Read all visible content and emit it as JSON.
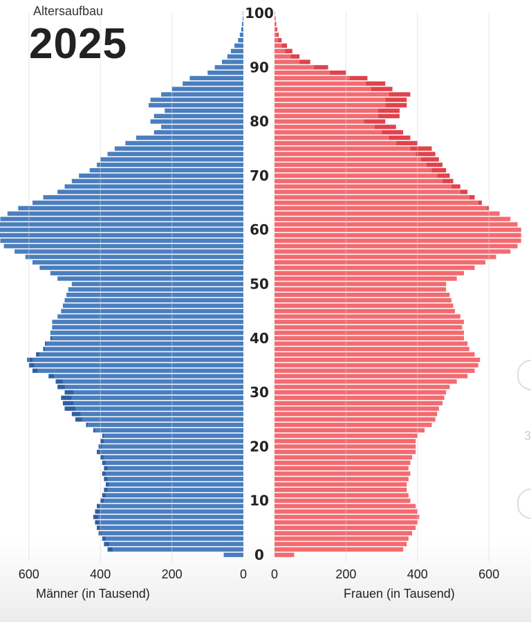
{
  "header": {
    "subtitle": "Altersaufbau",
    "year": "2025"
  },
  "colors": {
    "men": "#4a7ebf",
    "men_dark": "#2f5fa3",
    "women": "#f26b71",
    "women_dark": "#e0434b",
    "gridline": "#d6d6d6",
    "background": "#ffffff"
  },
  "edge_text": "3",
  "chart_data": {
    "type": "bar",
    "subtitle": "Altersaufbau",
    "title": "2025",
    "orientation": "horizontal-population-pyramid",
    "ages": [
      0,
      1,
      2,
      3,
      4,
      5,
      6,
      7,
      8,
      9,
      10,
      11,
      12,
      13,
      14,
      15,
      16,
      17,
      18,
      19,
      20,
      21,
      22,
      23,
      24,
      25,
      26,
      27,
      28,
      29,
      30,
      31,
      32,
      33,
      34,
      35,
      36,
      37,
      38,
      39,
      40,
      41,
      42,
      43,
      44,
      45,
      46,
      47,
      48,
      49,
      50,
      51,
      52,
      53,
      54,
      55,
      56,
      57,
      58,
      59,
      60,
      61,
      62,
      63,
      64,
      65,
      66,
      67,
      68,
      69,
      70,
      71,
      72,
      73,
      74,
      75,
      76,
      77,
      78,
      79,
      80,
      81,
      82,
      83,
      84,
      85,
      86,
      87,
      88,
      89,
      90,
      91,
      92,
      93,
      94,
      95,
      96,
      97,
      98,
      99,
      100
    ],
    "age_ticks": [
      "0",
      "10",
      "20",
      "30",
      "40",
      "50",
      "60",
      "70",
      "80",
      "90",
      "100"
    ],
    "x_ticks": [
      "600",
      "400",
      "200",
      "0"
    ],
    "x_ticks_right": [
      "0",
      "200",
      "400",
      "600"
    ],
    "xlim": [
      0,
      680
    ],
    "left": {
      "label": "Männer (in Tausend)",
      "total": [
        55,
        380,
        390,
        395,
        405,
        410,
        415,
        420,
        415,
        410,
        400,
        395,
        390,
        385,
        390,
        395,
        390,
        395,
        400,
        410,
        405,
        400,
        395,
        420,
        440,
        470,
        480,
        500,
        505,
        510,
        500,
        520,
        525,
        545,
        590,
        600,
        605,
        580,
        560,
        555,
        540,
        540,
        535,
        535,
        520,
        510,
        505,
        500,
        495,
        490,
        480,
        520,
        540,
        570,
        590,
        610,
        640,
        670,
        680,
        685,
        690,
        690,
        680,
        660,
        630,
        590,
        560,
        520,
        500,
        480,
        460,
        430,
        410,
        400,
        380,
        360,
        330,
        300,
        250,
        230,
        260,
        250,
        220,
        265,
        260,
        230,
        200,
        170,
        150,
        100,
        80,
        60,
        45,
        35,
        25,
        15,
        10,
        6,
        4,
        2,
        1
      ],
      "extra": [
        0,
        15,
        15,
        10,
        10,
        12,
        12,
        15,
        15,
        12,
        10,
        10,
        10,
        10,
        10,
        10,
        10,
        10,
        10,
        10,
        10,
        10,
        5,
        5,
        5,
        20,
        25,
        30,
        30,
        30,
        25,
        20,
        20,
        15,
        15,
        15,
        15,
        10,
        5,
        5,
        5,
        0,
        0,
        0,
        0,
        0,
        0,
        0,
        0,
        0,
        0,
        0,
        0,
        0,
        0,
        0,
        0,
        0,
        0,
        0,
        0,
        0,
        0,
        0,
        0,
        0,
        0,
        0,
        0,
        0,
        0,
        0,
        0,
        0,
        0,
        0,
        0,
        0,
        0,
        0,
        0,
        0,
        0,
        0,
        0,
        0,
        0,
        0,
        0,
        0,
        0,
        0,
        0,
        0,
        0,
        0,
        0,
        0,
        0,
        0,
        0
      ]
    },
    "right": {
      "label": "Frauen (in Tausend)",
      "total": [
        55,
        360,
        370,
        375,
        385,
        395,
        400,
        405,
        400,
        395,
        380,
        375,
        370,
        370,
        375,
        380,
        375,
        380,
        385,
        395,
        395,
        395,
        400,
        420,
        440,
        450,
        455,
        460,
        470,
        475,
        480,
        490,
        510,
        540,
        560,
        570,
        575,
        560,
        545,
        540,
        530,
        530,
        525,
        530,
        520,
        505,
        500,
        495,
        490,
        480,
        480,
        510,
        530,
        560,
        590,
        620,
        660,
        680,
        690,
        690,
        690,
        680,
        660,
        630,
        600,
        580,
        560,
        540,
        520,
        500,
        490,
        480,
        470,
        460,
        450,
        440,
        400,
        380,
        360,
        340,
        310,
        350,
        350,
        370,
        370,
        380,
        330,
        310,
        260,
        200,
        150,
        100,
        70,
        50,
        35,
        20,
        12,
        8,
        5,
        3,
        1
      ],
      "extra": [
        0,
        0,
        0,
        0,
        0,
        0,
        0,
        0,
        0,
        0,
        0,
        0,
        0,
        0,
        0,
        0,
        0,
        0,
        0,
        0,
        0,
        0,
        0,
        0,
        0,
        0,
        0,
        0,
        0,
        0,
        0,
        0,
        0,
        0,
        0,
        0,
        0,
        0,
        0,
        0,
        0,
        0,
        0,
        0,
        0,
        0,
        0,
        0,
        0,
        0,
        0,
        0,
        0,
        0,
        0,
        0,
        0,
        0,
        0,
        0,
        0,
        0,
        0,
        0,
        5,
        10,
        15,
        20,
        25,
        30,
        35,
        40,
        45,
        50,
        55,
        60,
        60,
        60,
        60,
        60,
        60,
        60,
        60,
        60,
        60,
        60,
        60,
        55,
        50,
        45,
        40,
        30,
        25,
        20,
        15,
        10,
        5,
        3,
        2,
        1,
        0
      ]
    },
    "grid": true
  }
}
